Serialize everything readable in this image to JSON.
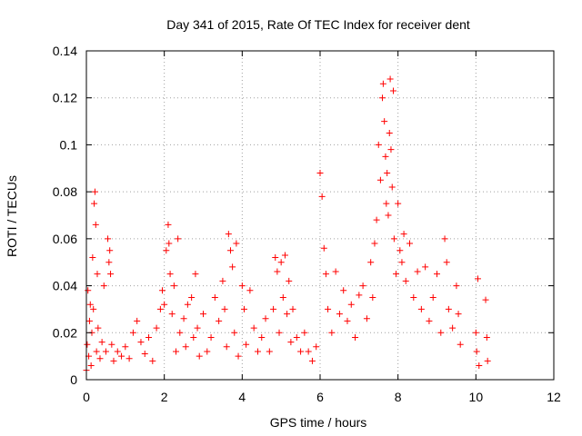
{
  "chart_data": {
    "type": "scatter",
    "title": "Day 341 of 2015, Rate Of TEC Index for receiver dent",
    "xlabel": "GPS time / hours",
    "ylabel": "ROTI / TECUs",
    "xlim": [
      0,
      12
    ],
    "ylim": [
      0,
      0.14
    ],
    "x_ticks": [
      0,
      2,
      4,
      6,
      8,
      10,
      12
    ],
    "x_tick_labels": [
      "0",
      "2",
      "4",
      "6",
      "8",
      "10",
      "12"
    ],
    "y_ticks": [
      0,
      0.02,
      0.04,
      0.06,
      0.08,
      0.1,
      0.12,
      0.14
    ],
    "y_tick_labels": [
      "0",
      "0.02",
      "0.04",
      "0.06",
      "0.08",
      "0.1",
      "0.12",
      "0.14"
    ],
    "grid": true,
    "marker": "plus",
    "color": "#ff0000",
    "series": [
      {
        "name": "ROTI",
        "points": [
          [
            0.0,
            0.004
          ],
          [
            0.02,
            0.015
          ],
          [
            0.04,
            0.038
          ],
          [
            0.06,
            0.01
          ],
          [
            0.08,
            0.025
          ],
          [
            0.1,
            0.032
          ],
          [
            0.12,
            0.006
          ],
          [
            0.14,
            0.02
          ],
          [
            0.16,
            0.052
          ],
          [
            0.18,
            0.03
          ],
          [
            0.2,
            0.075
          ],
          [
            0.22,
            0.08
          ],
          [
            0.24,
            0.066
          ],
          [
            0.26,
            0.012
          ],
          [
            0.28,
            0.045
          ],
          [
            0.3,
            0.022
          ],
          [
            0.35,
            0.009
          ],
          [
            0.4,
            0.016
          ],
          [
            0.45,
            0.04
          ],
          [
            0.5,
            0.012
          ],
          [
            0.55,
            0.06
          ],
          [
            0.58,
            0.05
          ],
          [
            0.6,
            0.055
          ],
          [
            0.62,
            0.045
          ],
          [
            0.65,
            0.015
          ],
          [
            0.7,
            0.008
          ],
          [
            0.8,
            0.012
          ],
          [
            0.9,
            0.01
          ],
          [
            1.0,
            0.014
          ],
          [
            1.1,
            0.009
          ],
          [
            1.2,
            0.02
          ],
          [
            1.3,
            0.025
          ],
          [
            1.4,
            0.016
          ],
          [
            1.5,
            0.011
          ],
          [
            1.6,
            0.018
          ],
          [
            1.7,
            0.008
          ],
          [
            1.8,
            0.022
          ],
          [
            1.9,
            0.03
          ],
          [
            1.95,
            0.038
          ],
          [
            2.0,
            0.032
          ],
          [
            2.05,
            0.055
          ],
          [
            2.1,
            0.066
          ],
          [
            2.12,
            0.058
          ],
          [
            2.15,
            0.045
          ],
          [
            2.2,
            0.028
          ],
          [
            2.25,
            0.04
          ],
          [
            2.3,
            0.012
          ],
          [
            2.35,
            0.06
          ],
          [
            2.4,
            0.02
          ],
          [
            2.5,
            0.026
          ],
          [
            2.55,
            0.014
          ],
          [
            2.6,
            0.032
          ],
          [
            2.7,
            0.035
          ],
          [
            2.75,
            0.018
          ],
          [
            2.8,
            0.045
          ],
          [
            2.85,
            0.022
          ],
          [
            2.9,
            0.01
          ],
          [
            3.0,
            0.028
          ],
          [
            3.1,
            0.012
          ],
          [
            3.2,
            0.018
          ],
          [
            3.3,
            0.035
          ],
          [
            3.4,
            0.025
          ],
          [
            3.5,
            0.042
          ],
          [
            3.55,
            0.03
          ],
          [
            3.6,
            0.014
          ],
          [
            3.65,
            0.062
          ],
          [
            3.7,
            0.055
          ],
          [
            3.75,
            0.048
          ],
          [
            3.8,
            0.02
          ],
          [
            3.85,
            0.058
          ],
          [
            3.9,
            0.01
          ],
          [
            4.0,
            0.04
          ],
          [
            4.05,
            0.03
          ],
          [
            4.1,
            0.015
          ],
          [
            4.2,
            0.038
          ],
          [
            4.3,
            0.022
          ],
          [
            4.4,
            0.012
          ],
          [
            4.5,
            0.018
          ],
          [
            4.6,
            0.026
          ],
          [
            4.7,
            0.012
          ],
          [
            4.8,
            0.03
          ],
          [
            4.85,
            0.052
          ],
          [
            4.9,
            0.046
          ],
          [
            4.95,
            0.02
          ],
          [
            5.0,
            0.05
          ],
          [
            5.05,
            0.035
          ],
          [
            5.1,
            0.053
          ],
          [
            5.15,
            0.028
          ],
          [
            5.2,
            0.042
          ],
          [
            5.25,
            0.016
          ],
          [
            5.3,
            0.03
          ],
          [
            5.4,
            0.018
          ],
          [
            5.5,
            0.012
          ],
          [
            5.6,
            0.02
          ],
          [
            5.7,
            0.012
          ],
          [
            5.8,
            0.008
          ],
          [
            5.9,
            0.014
          ],
          [
            6.0,
            0.088
          ],
          [
            6.05,
            0.078
          ],
          [
            6.1,
            0.056
          ],
          [
            6.15,
            0.045
          ],
          [
            6.2,
            0.03
          ],
          [
            6.3,
            0.02
          ],
          [
            6.4,
            0.046
          ],
          [
            6.5,
            0.028
          ],
          [
            6.6,
            0.038
          ],
          [
            6.7,
            0.025
          ],
          [
            6.8,
            0.032
          ],
          [
            6.9,
            0.018
          ],
          [
            7.0,
            0.036
          ],
          [
            7.1,
            0.04
          ],
          [
            7.2,
            0.026
          ],
          [
            7.3,
            0.05
          ],
          [
            7.35,
            0.035
          ],
          [
            7.4,
            0.058
          ],
          [
            7.45,
            0.068
          ],
          [
            7.5,
            0.1
          ],
          [
            7.55,
            0.085
          ],
          [
            7.6,
            0.12
          ],
          [
            7.62,
            0.126
          ],
          [
            7.65,
            0.11
          ],
          [
            7.68,
            0.095
          ],
          [
            7.7,
            0.075
          ],
          [
            7.72,
            0.088
          ],
          [
            7.75,
            0.07
          ],
          [
            7.78,
            0.105
          ],
          [
            7.8,
            0.128
          ],
          [
            7.82,
            0.098
          ],
          [
            7.85,
            0.082
          ],
          [
            7.88,
            0.123
          ],
          [
            7.9,
            0.06
          ],
          [
            7.95,
            0.045
          ],
          [
            8.0,
            0.075
          ],
          [
            8.05,
            0.055
          ],
          [
            8.1,
            0.05
          ],
          [
            8.15,
            0.062
          ],
          [
            8.2,
            0.042
          ],
          [
            8.3,
            0.058
          ],
          [
            8.4,
            0.035
          ],
          [
            8.5,
            0.046
          ],
          [
            8.6,
            0.03
          ],
          [
            8.7,
            0.048
          ],
          [
            8.8,
            0.025
          ],
          [
            8.9,
            0.035
          ],
          [
            9.0,
            0.045
          ],
          [
            9.1,
            0.02
          ],
          [
            9.2,
            0.06
          ],
          [
            9.25,
            0.05
          ],
          [
            9.3,
            0.03
          ],
          [
            9.4,
            0.022
          ],
          [
            9.5,
            0.04
          ],
          [
            9.55,
            0.028
          ],
          [
            9.6,
            0.015
          ],
          [
            10.0,
            0.02
          ],
          [
            10.02,
            0.012
          ],
          [
            10.05,
            0.043
          ],
          [
            10.08,
            0.006
          ],
          [
            10.25,
            0.034
          ],
          [
            10.28,
            0.018
          ],
          [
            10.3,
            0.008
          ]
        ]
      }
    ]
  }
}
